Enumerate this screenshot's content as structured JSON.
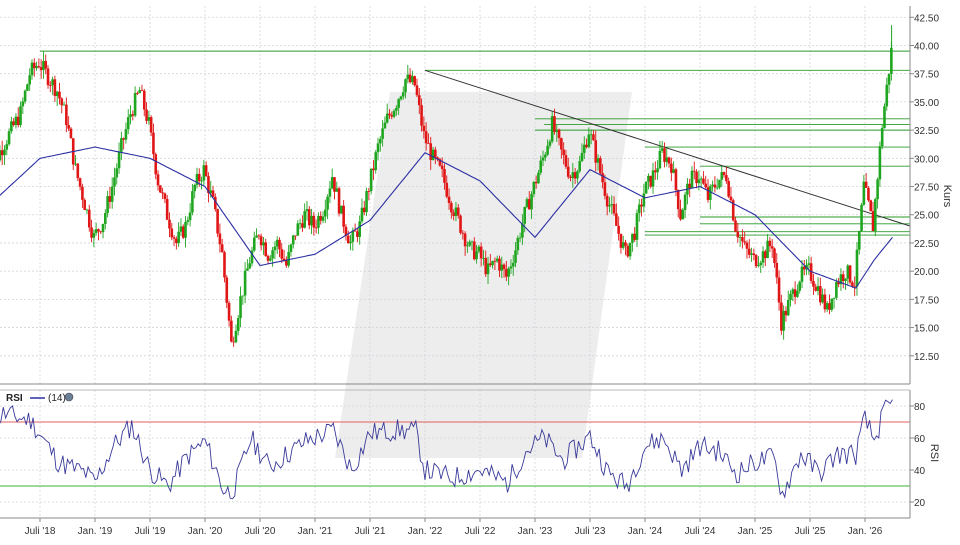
{
  "chart_data": [
    {
      "type": "candlestick",
      "ylabel": "Kurs",
      "ylim": [
        10.0,
        43.5
      ],
      "yticks": [
        12.5,
        15.0,
        17.5,
        20.0,
        22.5,
        25.0,
        27.5,
        30.0,
        32.5,
        35.0,
        37.5,
        40.0,
        42.5
      ],
      "yticks_labels": [
        "12.50",
        "15.00",
        "17.50",
        "20.00",
        "22.50",
        "25.00",
        "27.50",
        "30.00",
        "32.50",
        "35.00",
        "37.50",
        "40.00",
        "42.50"
      ],
      "x_tick_labels": [
        "Juli '18",
        "Jan. '19",
        "Juli '19",
        "Jan. '20",
        "Juli '20",
        "Jan. '21",
        "Juli '21",
        "Jan. '22",
        "Juli '22",
        "Jan. '23",
        "Juli '23",
        "Jan. '24",
        "Juli '24",
        "Jan. '25",
        "Juli '25",
        "Jan. '26"
      ],
      "x_tick_dates": [
        "2018-07",
        "2019-01",
        "2019-07",
        "2020-01",
        "2020-07",
        "2021-01",
        "2021-07",
        "2022-01",
        "2022-07",
        "2023-01",
        "2023-07",
        "2024-01",
        "2024-07",
        "2025-01",
        "2025-07",
        "2026-01"
      ],
      "x_start": "2018-01",
      "x_end": "2026-04",
      "grid": true,
      "price_path": [
        [
          "2018-01",
          28.0
        ],
        [
          "2018-03",
          31.0
        ],
        [
          "2018-05",
          34.0
        ],
        [
          "2018-06",
          37.5
        ],
        [
          "2018-07",
          38.5
        ],
        [
          "2018-09",
          36.0
        ],
        [
          "2018-10",
          33.5
        ],
        [
          "2018-11",
          29.0
        ],
        [
          "2018-12",
          26.0
        ],
        [
          "2019-01",
          23.0
        ],
        [
          "2019-02",
          24.5
        ],
        [
          "2019-03",
          27.5
        ],
        [
          "2019-04",
          31.0
        ],
        [
          "2019-05",
          34.0
        ],
        [
          "2019-06",
          36.0
        ],
        [
          "2019-07",
          33.0
        ],
        [
          "2019-08",
          28.0
        ],
        [
          "2019-09",
          25.0
        ],
        [
          "2019-10",
          22.5
        ],
        [
          "2019-11",
          24.0
        ],
        [
          "2019-12",
          27.5
        ],
        [
          "2020-01",
          29.0
        ],
        [
          "2020-02",
          26.0
        ],
        [
          "2020-03",
          21.5
        ],
        [
          "2020-04",
          13.5
        ],
        [
          "2020-05",
          17.5
        ],
        [
          "2020-06",
          21.0
        ],
        [
          "2020-07",
          23.5
        ],
        [
          "2020-08",
          21.5
        ],
        [
          "2020-09",
          22.5
        ],
        [
          "2020-10",
          20.5
        ],
        [
          "2020-11",
          23.5
        ],
        [
          "2020-12",
          25.0
        ],
        [
          "2021-01",
          24.0
        ],
        [
          "2021-02",
          25.5
        ],
        [
          "2021-03",
          28.5
        ],
        [
          "2021-04",
          25.0
        ],
        [
          "2021-05",
          22.5
        ],
        [
          "2021-06",
          24.0
        ],
        [
          "2021-07",
          27.5
        ],
        [
          "2021-08",
          31.0
        ],
        [
          "2021-09",
          33.5
        ],
        [
          "2021-10",
          35.0
        ],
        [
          "2021-11",
          37.0
        ],
        [
          "2021-12",
          36.5
        ],
        [
          "2022-01",
          32.0
        ],
        [
          "2022-02",
          30.0
        ],
        [
          "2022-03",
          28.5
        ],
        [
          "2022-04",
          26.0
        ],
        [
          "2022-05",
          24.0
        ],
        [
          "2022-06",
          22.0
        ],
        [
          "2022-07",
          21.5
        ],
        [
          "2022-08",
          20.0
        ],
        [
          "2022-09",
          21.0
        ],
        [
          "2022-10",
          19.5
        ],
        [
          "2022-11",
          22.0
        ],
        [
          "2022-12",
          25.0
        ],
        [
          "2023-01",
          27.5
        ],
        [
          "2023-02",
          30.0
        ],
        [
          "2023-03",
          33.0
        ],
        [
          "2023-04",
          30.5
        ],
        [
          "2023-05",
          28.5
        ],
        [
          "2023-06",
          29.5
        ],
        [
          "2023-07",
          32.5
        ],
        [
          "2023-08",
          29.5
        ],
        [
          "2023-09",
          26.5
        ],
        [
          "2023-10",
          24.0
        ],
        [
          "2023-11",
          21.5
        ],
        [
          "2023-12",
          23.5
        ],
        [
          "2024-01",
          27.0
        ],
        [
          "2024-02",
          28.5
        ],
        [
          "2024-03",
          30.5
        ],
        [
          "2024-04",
          29.5
        ],
        [
          "2024-05",
          25.0
        ],
        [
          "2024-06",
          28.0
        ],
        [
          "2024-07",
          28.5
        ],
        [
          "2024-08",
          26.5
        ],
        [
          "2024-09",
          28.0
        ],
        [
          "2024-10",
          28.5
        ],
        [
          "2024-11",
          24.0
        ],
        [
          "2024-12",
          22.0
        ],
        [
          "2025-01",
          21.0
        ],
        [
          "2025-02",
          21.5
        ],
        [
          "2025-03",
          22.5
        ],
        [
          "2025-04",
          15.5
        ],
        [
          "2025-05",
          17.5
        ],
        [
          "2025-06",
          19.5
        ],
        [
          "2025-07",
          20.0
        ],
        [
          "2025-08",
          18.5
        ],
        [
          "2025-09",
          16.5
        ],
        [
          "2025-10",
          19.0
        ],
        [
          "2025-11",
          20.0
        ],
        [
          "2025-12",
          19.0
        ],
        [
          "2026-01",
          27.5
        ],
        [
          "2026-02",
          24.0
        ],
        [
          "2026-03",
          33.0
        ],
        [
          "2026-04",
          39.5
        ]
      ],
      "moving_average": [
        [
          "2018-01",
          25.5
        ],
        [
          "2018-07",
          30.0
        ],
        [
          "2019-01",
          31.0
        ],
        [
          "2019-07",
          30.0
        ],
        [
          "2020-01",
          27.5
        ],
        [
          "2020-07",
          20.5
        ],
        [
          "2021-01",
          21.5
        ],
        [
          "2021-07",
          24.5
        ],
        [
          "2022-01",
          30.5
        ],
        [
          "2022-07",
          28.0
        ],
        [
          "2023-01",
          23.0
        ],
        [
          "2023-07",
          29.0
        ],
        [
          "2024-01",
          26.5
        ],
        [
          "2024-07",
          27.5
        ],
        [
          "2025-01",
          25.0
        ],
        [
          "2025-07",
          20.0
        ],
        [
          "2025-12",
          18.5
        ],
        [
          "2026-02",
          21.0
        ],
        [
          "2026-04",
          23.0
        ]
      ],
      "trendline": [
        [
          "2022-01",
          37.8
        ],
        [
          "2026-04",
          24.0
        ]
      ],
      "resistance_levels": [
        {
          "value": 39.5,
          "from": "2018-07",
          "to": "2026-04"
        },
        {
          "value": 37.8,
          "from": "2022-01",
          "to": "2026-04"
        },
        {
          "value": 33.5,
          "from": "2023-01",
          "to": "2026-04"
        },
        {
          "value": 33.0,
          "from": "2023-02",
          "to": "2026-04"
        },
        {
          "value": 32.5,
          "from": "2023-01",
          "to": "2026-04"
        },
        {
          "value": 31.0,
          "from": "2024-01",
          "to": "2026-04"
        },
        {
          "value": 29.3,
          "from": "2024-07",
          "to": "2026-04"
        },
        {
          "value": 24.8,
          "from": "2024-07",
          "to": "2026-04"
        },
        {
          "value": 24.2,
          "from": "2024-07",
          "to": "2026-04"
        },
        {
          "value": 23.5,
          "from": "2024-01",
          "to": "2026-04"
        },
        {
          "value": 23.2,
          "from": "2024-01",
          "to": "2026-04"
        }
      ]
    },
    {
      "type": "line",
      "title": "RSI",
      "legend_label": "(14)",
      "ylabel": "RSI",
      "ylim": [
        10,
        90
      ],
      "yticks": [
        20,
        40,
        60,
        80
      ],
      "yticks_labels": [
        "20",
        "40",
        "60",
        "80"
      ],
      "overbought": 70,
      "oversold": 30,
      "rsi_path": [
        [
          "2018-01",
          62
        ],
        [
          "2018-03",
          75
        ],
        [
          "2018-06",
          71
        ],
        [
          "2018-09",
          45
        ],
        [
          "2018-12",
          38
        ],
        [
          "2019-01",
          32
        ],
        [
          "2019-03",
          55
        ],
        [
          "2019-05",
          68
        ],
        [
          "2019-07",
          40
        ],
        [
          "2019-09",
          30
        ],
        [
          "2019-11",
          48
        ],
        [
          "2020-01",
          58
        ],
        [
          "2020-03",
          28
        ],
        [
          "2020-04",
          25
        ],
        [
          "2020-06",
          60
        ],
        [
          "2020-08",
          42
        ],
        [
          "2020-10",
          50
        ],
        [
          "2020-12",
          58
        ],
        [
          "2021-03",
          65
        ],
        [
          "2021-05",
          40
        ],
        [
          "2021-07",
          63
        ],
        [
          "2021-10",
          65
        ],
        [
          "2021-12",
          64
        ],
        [
          "2022-01",
          40
        ],
        [
          "2022-04",
          35
        ],
        [
          "2022-07",
          40
        ],
        [
          "2022-10",
          32
        ],
        [
          "2022-12",
          52
        ],
        [
          "2023-02",
          60
        ],
        [
          "2023-04",
          46
        ],
        [
          "2023-07",
          61
        ],
        [
          "2023-09",
          38
        ],
        [
          "2023-11",
          30
        ],
        [
          "2024-01",
          55
        ],
        [
          "2024-03",
          60
        ],
        [
          "2024-05",
          40
        ],
        [
          "2024-07",
          55
        ],
        [
          "2024-09",
          52
        ],
        [
          "2024-11",
          38
        ],
        [
          "2025-01",
          45
        ],
        [
          "2025-03",
          48
        ],
        [
          "2025-04",
          25
        ],
        [
          "2025-06",
          50
        ],
        [
          "2025-08",
          38
        ],
        [
          "2025-10",
          50
        ],
        [
          "2025-12",
          50
        ],
        [
          "2026-01",
          72
        ],
        [
          "2026-02",
          58
        ],
        [
          "2026-03",
          75
        ],
        [
          "2026-04",
          82
        ]
      ]
    }
  ],
  "colors": {
    "up": "#1fa51f",
    "down": "#e01616",
    "moving_average": "#2b2fa2",
    "trendline": "#333333",
    "resistance": "#2a9b2a",
    "rsi": "#3a3a9a",
    "overbought": "#e06060",
    "oversold": "#3ab53a",
    "grid": "#cfd4da",
    "watermark": "#d6d6d6"
  }
}
